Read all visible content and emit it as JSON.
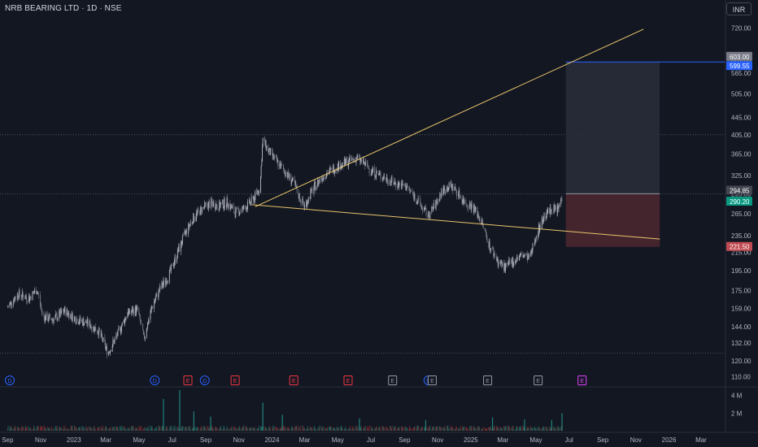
{
  "header": {
    "title": "NRB BEARING LTD · 1D · NSE",
    "currency_button": "INR"
  },
  "colors": {
    "background": "#131722",
    "up": "#b2b5be",
    "down": "#787b86",
    "trendline": "#e9c46a",
    "target_line": "#2962ff",
    "target_zone": "#2a2e39",
    "stop_zone": "#4a2730",
    "badge_green": "#089981",
    "badge_red": "#f23645",
    "badge_gray": "#787b86",
    "badge_blue": "#2962ff"
  },
  "chart_data": {
    "type": "candlestick",
    "symbol": "NRB BEARING LTD",
    "interval": "1D",
    "exchange": "NSE",
    "currency": "INR",
    "y_scale": "log",
    "ylim": [
      107,
      760
    ],
    "y_ticks": [
      720,
      603,
      565,
      505,
      445,
      405,
      365,
      325,
      295,
      265,
      235,
      215,
      195,
      175,
      159,
      144,
      132,
      120,
      110
    ],
    "x_ticks": [
      "Sep",
      "Nov",
      "2023",
      "Mar",
      "May",
      "Jul",
      "Sep",
      "Nov",
      "2024",
      "Mar",
      "May",
      "Jul",
      "Sep",
      "Nov",
      "2025",
      "Mar",
      "May",
      "Jul",
      "Sep",
      "Nov",
      "2026",
      "Mar"
    ],
    "close_path": [
      [
        "2022-09-01",
        160
      ],
      [
        "2022-09-20",
        172
      ],
      [
        "2022-10-10",
        168
      ],
      [
        "2022-10-25",
        176
      ],
      [
        "2022-11-05",
        152
      ],
      [
        "2022-11-25",
        150
      ],
      [
        "2022-12-15",
        157
      ],
      [
        "2023-01-05",
        150
      ],
      [
        "2023-01-25",
        147
      ],
      [
        "2023-02-15",
        141
      ],
      [
        "2023-03-05",
        125
      ],
      [
        "2023-03-25",
        140
      ],
      [
        "2023-04-10",
        155
      ],
      [
        "2023-04-28",
        158
      ],
      [
        "2023-05-10",
        135
      ],
      [
        "2023-05-25",
        160
      ],
      [
        "2023-06-10",
        178
      ],
      [
        "2023-06-25",
        190
      ],
      [
        "2023-07-10",
        213
      ],
      [
        "2023-07-25",
        238
      ],
      [
        "2023-08-10",
        260
      ],
      [
        "2023-08-25",
        272
      ],
      [
        "2023-09-10",
        280
      ],
      [
        "2023-09-25",
        276
      ],
      [
        "2023-10-10",
        282
      ],
      [
        "2023-10-25",
        266
      ],
      [
        "2023-11-10",
        272
      ],
      [
        "2023-11-25",
        283
      ],
      [
        "2023-12-10",
        305
      ],
      [
        "2023-12-15",
        395
      ],
      [
        "2023-12-25",
        372
      ],
      [
        "2024-01-10",
        350
      ],
      [
        "2024-01-25",
        332
      ],
      [
        "2024-02-10",
        312
      ],
      [
        "2024-02-20",
        290
      ],
      [
        "2024-03-01",
        275
      ],
      [
        "2024-03-15",
        300
      ],
      [
        "2024-04-01",
        322
      ],
      [
        "2024-04-15",
        332
      ],
      [
        "2024-05-01",
        342
      ],
      [
        "2024-05-20",
        350
      ],
      [
        "2024-06-05",
        358
      ],
      [
        "2024-06-20",
        345
      ],
      [
        "2024-07-05",
        332
      ],
      [
        "2024-07-25",
        322
      ],
      [
        "2024-08-15",
        312
      ],
      [
        "2024-09-05",
        306
      ],
      [
        "2024-09-20",
        290
      ],
      [
        "2024-10-05",
        272
      ],
      [
        "2024-10-15",
        262
      ],
      [
        "2024-10-28",
        278
      ],
      [
        "2024-11-10",
        300
      ],
      [
        "2024-11-25",
        308
      ],
      [
        "2024-12-05",
        300
      ],
      [
        "2024-12-20",
        282
      ],
      [
        "2025-01-05",
        275
      ],
      [
        "2025-01-20",
        255
      ],
      [
        "2025-02-05",
        222
      ],
      [
        "2025-02-20",
        205
      ],
      [
        "2025-03-05",
        198
      ],
      [
        "2025-03-20",
        205
      ],
      [
        "2025-04-05",
        212
      ],
      [
        "2025-04-20",
        208
      ],
      [
        "2025-05-01",
        235
      ],
      [
        "2025-05-15",
        260
      ],
      [
        "2025-05-30",
        272
      ],
      [
        "2025-06-10",
        270
      ],
      [
        "2025-06-18",
        290
      ]
    ],
    "volume_ticks": [
      "4 M",
      "2 M"
    ],
    "volume_max_m": 4.6,
    "volume_spikes": [
      [
        "2023-06-15",
        3.6
      ],
      [
        "2023-07-15",
        4.6
      ],
      [
        "2023-08-10",
        2.2
      ],
      [
        "2023-09-10",
        1.6
      ],
      [
        "2023-12-15",
        3.2
      ],
      [
        "2024-01-20",
        1.8
      ],
      [
        "2024-06-10",
        1.4
      ],
      [
        "2024-10-10",
        1.2
      ],
      [
        "2025-02-10",
        1.5
      ],
      [
        "2025-04-10",
        1.3
      ],
      [
        "2025-05-30",
        1.2
      ],
      [
        "2025-06-18",
        2.0
      ]
    ],
    "price_labels": [
      {
        "value": 603.0,
        "text": "603.00",
        "color": "#787b86"
      },
      {
        "value": 599.55,
        "text": "599.55",
        "color": "#2962ff"
      },
      {
        "value": 294.85,
        "text": "294.85",
        "color": "#434651"
      },
      {
        "value": 290.2,
        "text": "290.20",
        "color": "#089981"
      },
      {
        "value": 221.5,
        "text": "221.50",
        "color": "#c04a52"
      }
    ],
    "horizontal_lines": [
      405,
      294.85,
      125
    ],
    "trendlines": [
      {
        "from": [
          "2023-12-01",
          275
        ],
        "to": [
          "2025-11-15",
          715
        ]
      },
      {
        "from": [
          "2023-11-25",
          278
        ],
        "to": [
          "2025-12-15",
          231
        ]
      }
    ],
    "position": {
      "start": "2025-06-25",
      "end": "2025-12-15",
      "entry": 294.85,
      "target": 599.55,
      "stop": 221.5
    },
    "events": [
      {
        "date": "2022-09-05",
        "type": "D"
      },
      {
        "date": "2023-05-30",
        "type": "D"
      },
      {
        "date": "2023-07-30",
        "type": "E"
      },
      {
        "date": "2023-08-30",
        "type": "D"
      },
      {
        "date": "2023-10-25",
        "type": "E"
      },
      {
        "date": "2024-02-10",
        "type": "E"
      },
      {
        "date": "2024-05-20",
        "type": "E"
      },
      {
        "date": "2024-08-10",
        "type": "E"
      },
      {
        "date": "2024-10-15",
        "type": "D"
      },
      {
        "date": "2024-10-22",
        "type": "E"
      },
      {
        "date": "2025-02-01",
        "type": "E"
      },
      {
        "date": "2025-05-05",
        "type": "E"
      },
      {
        "date": "2025-07-25",
        "type": "E"
      }
    ]
  }
}
